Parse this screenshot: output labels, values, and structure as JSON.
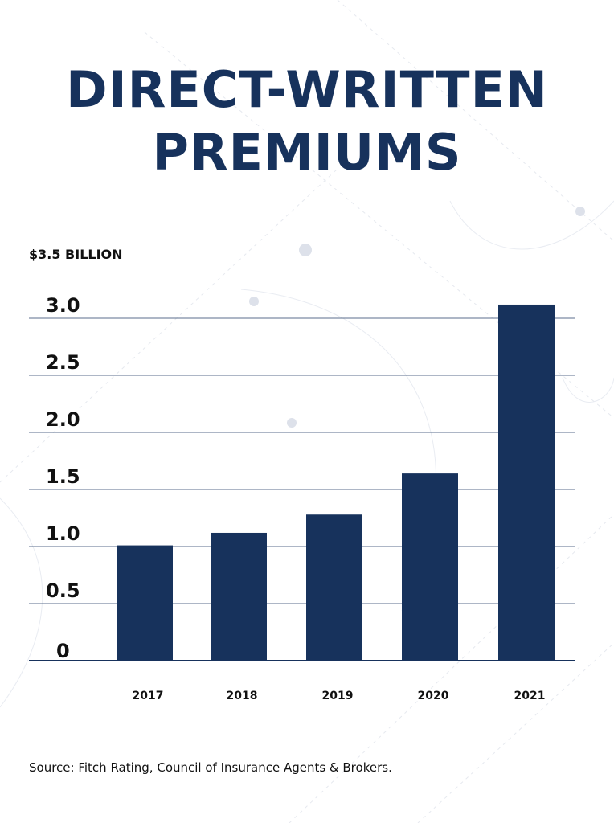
{
  "title_line_1": "DIRECT-WRITTEN",
  "title_line_2": "PREMIUMS",
  "source": "Source: Fitch Rating, Council of Insurance Agents & Brokers.",
  "colors": {
    "bar": "#17325c",
    "title": "#17325c",
    "grid": "#5b6e8c",
    "axis": "#17325c"
  },
  "chart_data": {
    "type": "bar",
    "categories": [
      "2017",
      "2018",
      "2019",
      "2020",
      "2021"
    ],
    "values": [
      1.01,
      1.12,
      1.28,
      1.64,
      3.12
    ],
    "ylabel": "$3.5 BILLION",
    "yticks": [
      {
        "value": 0,
        "label": "0"
      },
      {
        "value": 0.5,
        "label": "0.5"
      },
      {
        "value": 1.0,
        "label": "1.0"
      },
      {
        "value": 1.5,
        "label": "1.5"
      },
      {
        "value": 2.0,
        "label": "2.0"
      },
      {
        "value": 2.5,
        "label": "2.5"
      },
      {
        "value": 3.0,
        "label": "3.0"
      }
    ],
    "ylim": [
      0,
      3.5
    ],
    "grid": true
  }
}
